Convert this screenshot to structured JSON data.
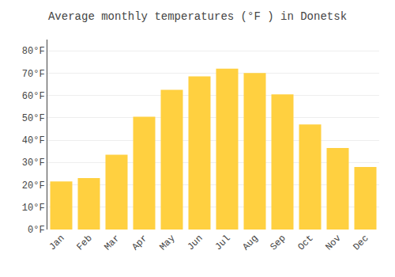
{
  "chart_data": {
    "type": "bar",
    "title": "Average monthly temperatures (°F ) in Donetsk",
    "categories": [
      "Jan",
      "Feb",
      "Mar",
      "Apr",
      "May",
      "Jun",
      "Jul",
      "Aug",
      "Sep",
      "Oct",
      "Nov",
      "Dec"
    ],
    "values": [
      21.5,
      23.0,
      33.5,
      50.5,
      62.5,
      68.5,
      72.0,
      70.0,
      60.5,
      47.0,
      36.5,
      28.0
    ],
    "color": "#FFD040",
    "ylim": [
      0,
      85
    ],
    "yticks": [
      {
        "value": 0,
        "label": "0°F"
      },
      {
        "value": 10,
        "label": "10°F"
      },
      {
        "value": 20,
        "label": "20°F"
      },
      {
        "value": 30,
        "label": "30°F"
      },
      {
        "value": 40,
        "label": "40°F"
      },
      {
        "value": 50,
        "label": "50°F"
      },
      {
        "value": 60,
        "label": "60°F"
      },
      {
        "value": 70,
        "label": "70°F"
      },
      {
        "value": 80,
        "label": "80°F"
      }
    ],
    "grid": true
  }
}
